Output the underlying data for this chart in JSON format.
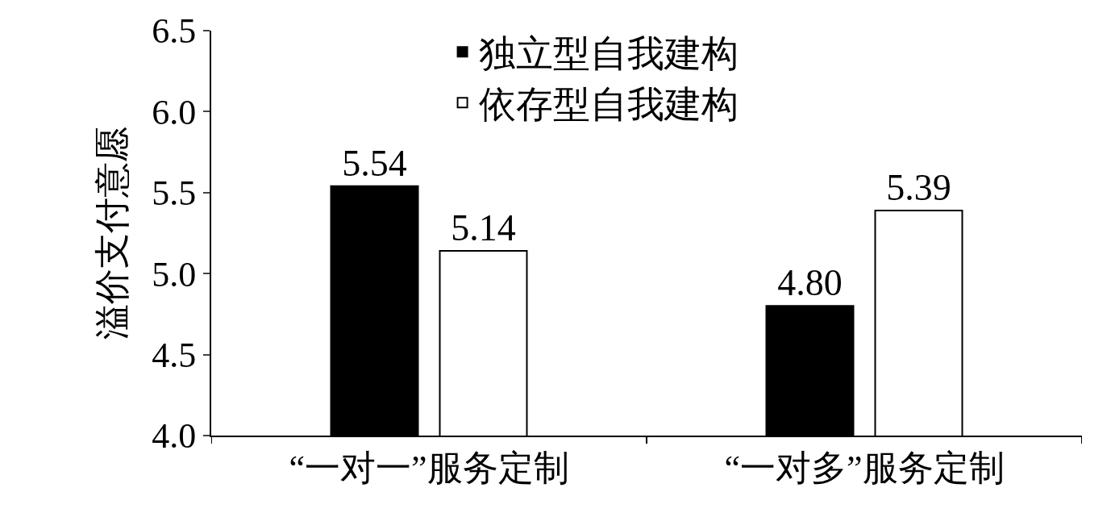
{
  "chart_data": {
    "type": "bar",
    "ylabel": "溢价支付意愿",
    "categories": [
      "“一对一”服务定制",
      "“一对多”服务定制"
    ],
    "series": [
      {
        "name": "独立型自我建构",
        "color": "#000000",
        "values": [
          5.54,
          4.8
        ],
        "value_labels": [
          "5.54",
          "4.80"
        ]
      },
      {
        "name": "依存型自我建构",
        "color": "#ffffff",
        "values": [
          5.14,
          5.39
        ],
        "value_labels": [
          "5.14",
          "5.39"
        ]
      }
    ],
    "ylim": [
      4.0,
      6.5
    ],
    "yticks": [
      {
        "value": 4.0,
        "label": "4.0"
      },
      {
        "value": 4.5,
        "label": "4.5"
      },
      {
        "value": 5.0,
        "label": "5.0"
      },
      {
        "value": 5.5,
        "label": "5.5"
      },
      {
        "value": 6.0,
        "label": "6.0"
      },
      {
        "value": 6.5,
        "label": "6.5"
      }
    ],
    "legend": "top"
  }
}
